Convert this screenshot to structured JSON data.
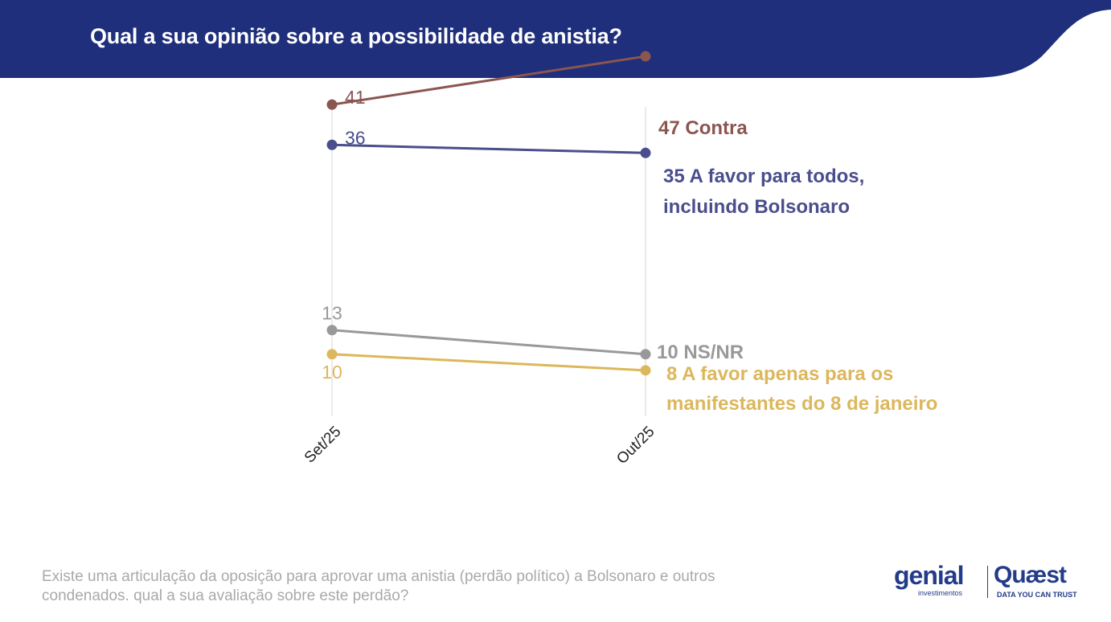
{
  "header": {
    "title": "Qual a sua opinião sobre a possibilidade de anistia?",
    "bg_color": "#1f2f7b"
  },
  "chart_data": {
    "type": "line",
    "x": [
      "Set/25",
      "Out/25"
    ],
    "series": [
      {
        "name": "Contra",
        "values": [
          41,
          47
        ],
        "color": "#8b5550",
        "start_label": "41",
        "end_label_lines": [
          "47 Contra"
        ]
      },
      {
        "name": "A favor para todos, incluindo Bolsonaro",
        "values": [
          36,
          35
        ],
        "color": "#4a4e8c",
        "start_label": "36",
        "end_label_lines": [
          "35 A favor para todos,",
          "incluindo Bolsonaro"
        ]
      },
      {
        "name": "NS/NR",
        "values": [
          13,
          10
        ],
        "color": "#999999",
        "start_label": "13",
        "end_label_lines": [
          "10 NS/NR"
        ]
      },
      {
        "name": "A favor apenas para os manifestantes do 8 de janeiro",
        "values": [
          10,
          8
        ],
        "color": "#dcb75b",
        "start_label": "10",
        "end_label_lines": [
          "8 A favor apenas para os",
          "manifestantes do 8 de janeiro"
        ]
      }
    ],
    "ylim": [
      0,
      50
    ],
    "grid": "vertical"
  },
  "footnote": "Existe uma articulação da oposição para aprovar uma anistia (perdão político) a Bolsonaro e outros condenados. qual a sua avaliação sobre este perdão?",
  "logos": {
    "genial_word": "genial",
    "genial_sub": "investimentos",
    "quaest_word": "Quæst",
    "quaest_sub": "DATA YOU CAN TRUST"
  }
}
